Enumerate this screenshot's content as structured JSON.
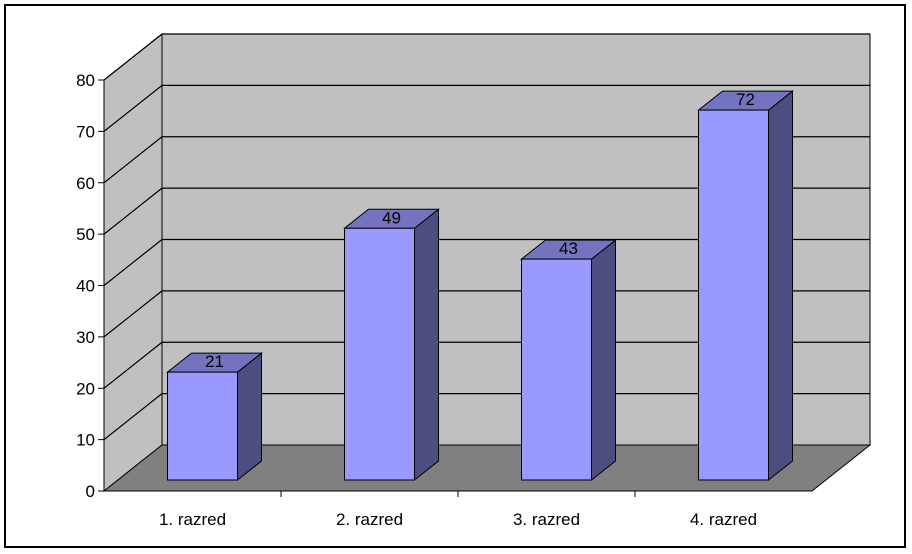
{
  "chart_data": {
    "type": "bar",
    "categories": [
      "1. razred",
      "2. razred",
      "3. razred",
      "4. razred"
    ],
    "values": [
      21,
      49,
      43,
      72
    ],
    "ylim": [
      0,
      80
    ],
    "yticks": [
      "0",
      "10",
      "20",
      "30",
      "40",
      "50",
      "60",
      "70",
      "80"
    ],
    "grid": true,
    "legend": "none",
    "colors": {
      "bar_front": "#9999ff",
      "bar_side": "#4d4d80",
      "bar_top": "#7373bf",
      "back_wall": "#c0c0c0",
      "floor": "#808080"
    }
  }
}
